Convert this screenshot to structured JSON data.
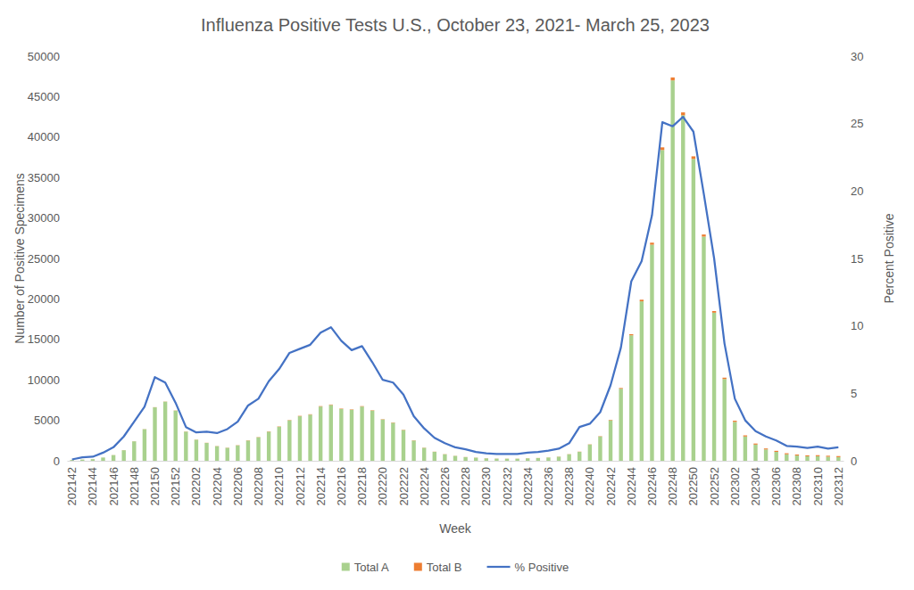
{
  "chart_data": {
    "type": "bar",
    "title": "Influenza Positive Tests U.S., October 23, 2021- March 25, 2023",
    "x_label": "Week",
    "y_label": "Number of Positive Specimens",
    "y2_label": "Percent Positive",
    "stacked": true,
    "grid": false,
    "legend": "bottom",
    "categories": [
      "202142",
      null,
      "202144",
      null,
      "202146",
      null,
      "202148",
      null,
      "202150",
      null,
      "202152",
      null,
      "202202",
      null,
      "202204",
      null,
      "202206",
      null,
      "202208",
      null,
      "202210",
      null,
      "202212",
      null,
      "202214",
      null,
      "202216",
      null,
      "202218",
      null,
      "202220",
      null,
      "202222",
      null,
      "202224",
      null,
      "202226",
      null,
      "202228",
      null,
      "202230",
      null,
      "202232",
      null,
      "202234",
      null,
      "202236",
      null,
      "202238",
      null,
      "202240",
      null,
      "202242",
      null,
      "202244",
      null,
      "202246",
      null,
      "202248",
      null,
      "202250",
      null,
      "202252",
      null,
      "202302",
      null,
      "202304",
      null,
      "202306",
      null,
      "202308",
      null,
      "202310",
      null,
      "202312"
    ],
    "series": [
      {
        "name": "Total A",
        "type": "bar",
        "color": "#a9d18e",
        "values": [
          100,
          150,
          200,
          400,
          700,
          1300,
          2400,
          3900,
          6600,
          7300,
          6200,
          3600,
          2600,
          2200,
          1800,
          1600,
          1900,
          2500,
          2900,
          3600,
          4200,
          5000,
          5500,
          5700,
          6700,
          6900,
          6400,
          6300,
          6700,
          6200,
          5100,
          4700,
          3800,
          2500,
          1600,
          1100,
          800,
          600,
          450,
          380,
          300,
          260,
          250,
          250,
          300,
          330,
          400,
          500,
          800,
          1100,
          2000,
          3000,
          5000,
          8900,
          15500,
          19700,
          26700,
          38400,
          47000,
          42700,
          37300,
          27700,
          18300,
          10100,
          4800,
          3000,
          2000,
          1400,
          1100,
          800,
          650,
          550,
          560,
          500,
          450
        ]
      },
      {
        "name": "Total B",
        "type": "bar",
        "color": "#ed7d31",
        "values": [
          5,
          5,
          5,
          5,
          10,
          10,
          10,
          15,
          20,
          20,
          20,
          20,
          20,
          20,
          20,
          20,
          25,
          30,
          30,
          35,
          40,
          40,
          45,
          45,
          50,
          50,
          50,
          50,
          50,
          45,
          40,
          40,
          35,
          30,
          25,
          20,
          20,
          15,
          15,
          15,
          15,
          15,
          15,
          15,
          15,
          15,
          15,
          20,
          20,
          25,
          30,
          40,
          60,
          90,
          140,
          200,
          250,
          330,
          370,
          350,
          320,
          260,
          200,
          170,
          150,
          140,
          130,
          120,
          130,
          130,
          120,
          120,
          130,
          120,
          130
        ]
      },
      {
        "name": "% Positive",
        "type": "line",
        "axis": "y2",
        "color": "#4472c4",
        "values": [
          0.1,
          0.25,
          0.3,
          0.6,
          1.0,
          1.8,
          2.9,
          4.0,
          6.2,
          5.8,
          4.3,
          2.5,
          2.1,
          2.15,
          2.05,
          2.35,
          2.9,
          4.1,
          4.6,
          5.9,
          6.8,
          8.0,
          8.3,
          8.6,
          9.5,
          9.9,
          8.9,
          8.2,
          8.5,
          7.3,
          6.0,
          5.8,
          4.9,
          3.3,
          2.4,
          1.7,
          1.3,
          1.0,
          0.85,
          0.65,
          0.55,
          0.5,
          0.5,
          0.5,
          0.6,
          0.65,
          0.75,
          0.9,
          1.3,
          2.5,
          2.75,
          3.6,
          5.6,
          8.4,
          13.3,
          14.8,
          18.2,
          25.1,
          24.8,
          25.5,
          24.4,
          19.8,
          15.0,
          8.7,
          4.6,
          3.0,
          2.2,
          1.8,
          1.5,
          1.1,
          1.05,
          0.95,
          1.05,
          0.9,
          1.0
        ]
      }
    ],
    "ylim": [
      0,
      50000
    ],
    "yticks": [
      0,
      5000,
      10000,
      15000,
      20000,
      25000,
      30000,
      35000,
      40000,
      45000,
      50000
    ],
    "y2lim": [
      0,
      30
    ],
    "y2ticks": [
      0,
      5,
      10,
      15,
      20,
      25,
      30
    ]
  }
}
